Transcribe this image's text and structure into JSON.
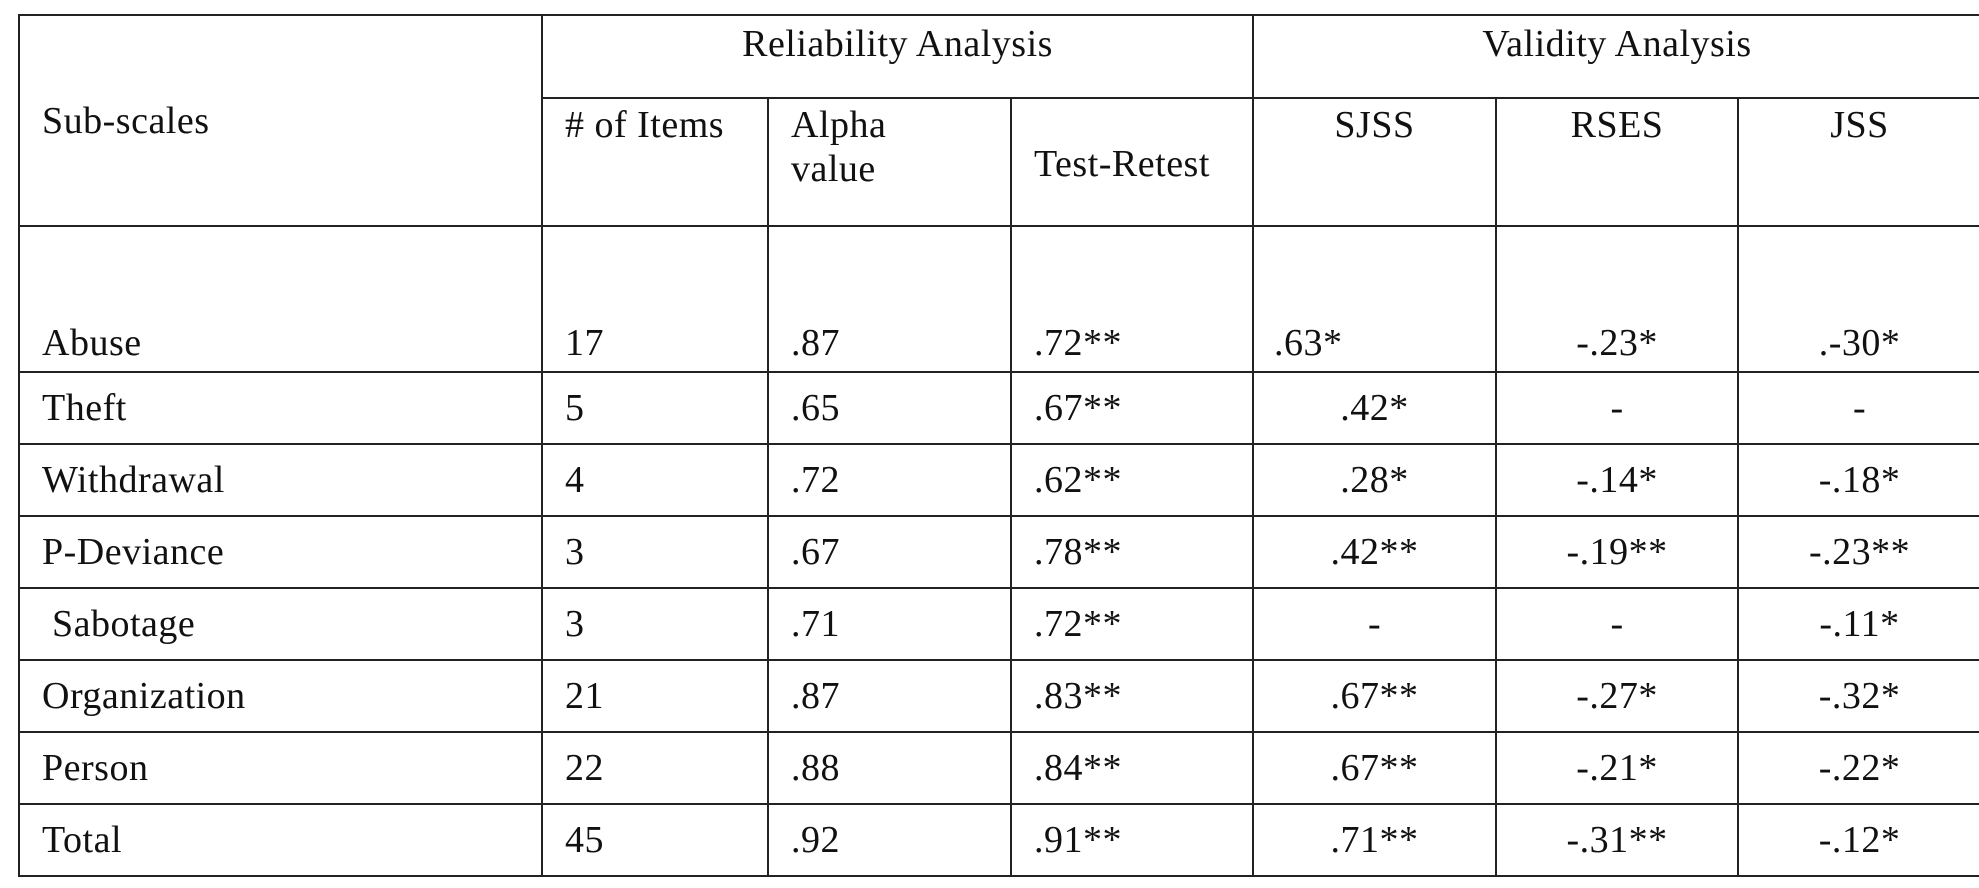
{
  "table": {
    "subscales_header": "Sub-scales",
    "groups": {
      "reliability": "Reliability Analysis",
      "validity": "Validity Analysis"
    },
    "columns": {
      "items": "# of Items",
      "alpha_line1": "Alpha",
      "alpha_line2": "value",
      "test_retest": "Test-Retest",
      "sjss": "SJSS",
      "rses": "RSES",
      "jss": "JSS"
    },
    "rows": [
      {
        "label": "Abuse",
        "items": "17",
        "alpha": ".87",
        "test_retest": ".72**",
        "sjss": ".63*",
        "rses": "-.23*",
        "jss": ".-30*"
      },
      {
        "label": "Theft",
        "items": "5",
        "alpha": ".65",
        "test_retest": ".67**",
        "sjss": ".42*",
        "rses": "-",
        "jss": "-"
      },
      {
        "label": "Withdrawal",
        "items": "4",
        "alpha": ".72",
        "test_retest": ".62**",
        "sjss": ".28*",
        "rses": "-.14*",
        "jss": "-.18*"
      },
      {
        "label": "P-Deviance",
        "items": "3",
        "alpha": ".67",
        "test_retest": ".78**",
        "sjss": ".42**",
        "rses": "-.19**",
        "jss": "-.23**"
      },
      {
        "label": " Sabotage",
        "items": "3",
        "alpha": ".71",
        "test_retest": ".72**",
        "sjss": "-",
        "rses": "-",
        "jss": "-.11*"
      },
      {
        "label": "Organization",
        "items": "21",
        "alpha": ".87",
        "test_retest": ".83**",
        "sjss": ".67**",
        "rses": "-.27*",
        "jss": "-.32*"
      },
      {
        "label": "Person",
        "items": "22",
        "alpha": ".88",
        "test_retest": ".84**",
        "sjss": ".67**",
        "rses": "-.21*",
        "jss": "-.22*"
      },
      {
        "label": "Total",
        "items": "45",
        "alpha": ".92",
        "test_retest": ".91**",
        "sjss": ".71**",
        "rses": "-.31**",
        "jss": "-.12*"
      }
    ]
  }
}
